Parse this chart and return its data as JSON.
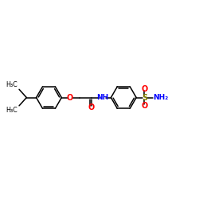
{
  "background": "#ffffff",
  "bond_color": "#000000",
  "o_color": "#ff0000",
  "n_color": "#0000ff",
  "s_color": "#808000",
  "text_color": "#000000",
  "figsize": [
    2.5,
    2.5
  ],
  "dpi": 100,
  "xlim": [
    0,
    10
  ],
  "ylim": [
    0,
    10
  ]
}
